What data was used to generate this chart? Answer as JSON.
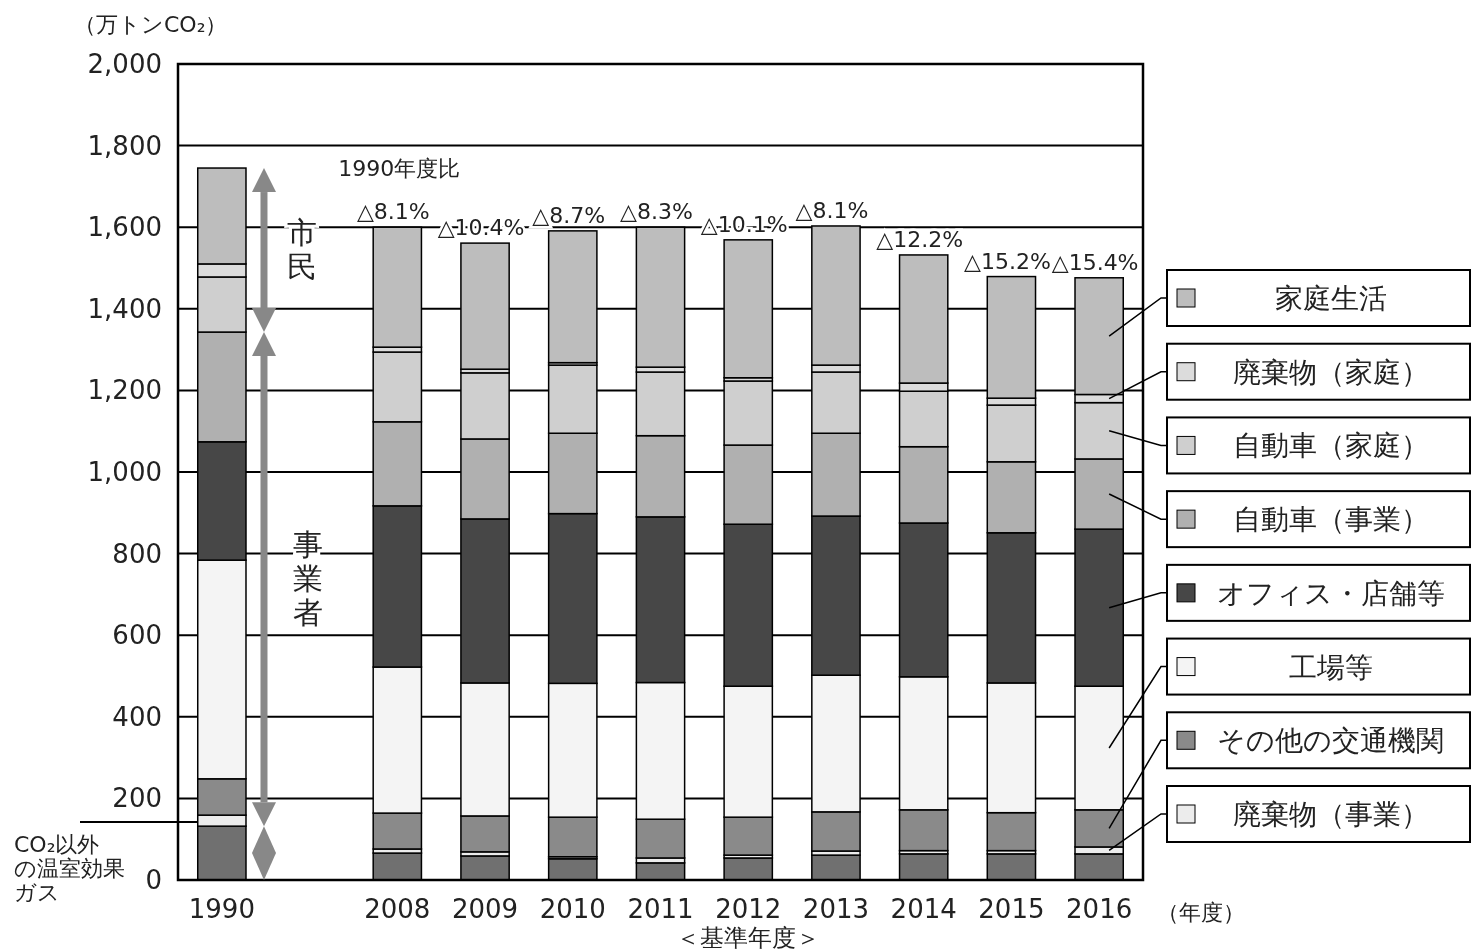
{
  "chart_data": {
    "type": "bar",
    "stacked": true,
    "ylabel": "（万トンCO₂）",
    "xlabel": "（年度）",
    "categories": [
      "1990",
      null,
      "2008",
      "2009",
      "2010",
      "2011",
      "2012",
      "2013",
      "2014",
      "2015",
      "2016"
    ],
    "ylim": [
      0,
      2000
    ],
    "yticks": [
      0,
      200,
      400,
      600,
      800,
      {
        "value": 1000,
        "label": "1,000"
      },
      {
        "value": 1200,
        "label": "1,200"
      },
      {
        "value": 1400,
        "label": "1,400"
      },
      {
        "value": 1600,
        "label": "1,600"
      },
      {
        "value": 1800,
        "label": "1,800"
      },
      {
        "value": 2000,
        "label": "2,000"
      }
    ],
    "grid": "y",
    "legend": "right",
    "series": [
      {
        "name": "CO₂以外の温室効果ガス",
        "color": "#707070",
        "values": [
          132,
          null,
          66,
          59,
          52,
          42,
          54,
          61,
          64,
          64,
          64
        ]
      },
      {
        "name": "廃棄物（事業）",
        "color": "#ececec",
        "values": [
          27,
          null,
          10,
          10,
          5,
          12,
          7,
          10,
          8,
          8,
          17
        ]
      },
      {
        "name": "その他の交通機関",
        "color": "#8a8a8a",
        "values": [
          89,
          null,
          88,
          88,
          97,
          95,
          93,
          96,
          100,
          93,
          91
        ]
      },
      {
        "name": "工場等",
        "color": "#f4f4f4",
        "values": [
          536,
          null,
          358,
          326,
          328,
          335,
          321,
          335,
          326,
          318,
          303
        ]
      },
      {
        "name": "オフィス・店舗等",
        "color": "#474747",
        "values": [
          290,
          null,
          395,
          402,
          416,
          406,
          397,
          390,
          377,
          368,
          385
        ]
      },
      {
        "name": "自動車（事業）",
        "color": "#b0b0b0",
        "values": [
          269,
          null,
          206,
          196,
          197,
          199,
          194,
          203,
          187,
          174,
          172
        ]
      },
      {
        "name": "自動車（家庭）",
        "color": "#cfcfcf",
        "values": [
          135,
          null,
          171,
          162,
          167,
          156,
          157,
          150,
          136,
          139,
          138
        ]
      },
      {
        "name": "廃棄物（家庭）",
        "color": "#dcdcdc",
        "values": [
          32,
          null,
          12,
          9,
          6,
          12,
          8,
          17,
          20,
          17,
          20
        ]
      },
      {
        "name": "家庭生活",
        "color": "#bdbdbd",
        "values": [
          235,
          null,
          294,
          309,
          323,
          343,
          338,
          341,
          314,
          298,
          286
        ]
      }
    ],
    "annotations": [
      "市民",
      "事業者",
      "1990年度比",
      "＜基準年度＞",
      {
        "text": "△8.1%",
        "x": "2008",
        "y": 1600
      },
      {
        "text": "△10.4%",
        "x": "2009",
        "y": 1561
      },
      {
        "text": "△8.7%",
        "x": "2010",
        "y": 1591
      },
      {
        "text": "△8.3%",
        "x": "2011",
        "y": 1600
      },
      {
        "text": "△10.1%",
        "x": "2012",
        "y": 1569
      },
      {
        "text": "△8.1%",
        "x": "2013",
        "y": 1603
      },
      {
        "text": "△12.2%",
        "x": "2014",
        "y": 1532
      },
      {
        "text": "△15.2%",
        "x": "2015",
        "y": 1479
      },
      {
        "text": "△15.4%",
        "x": "2016",
        "y": 1476
      }
    ]
  }
}
